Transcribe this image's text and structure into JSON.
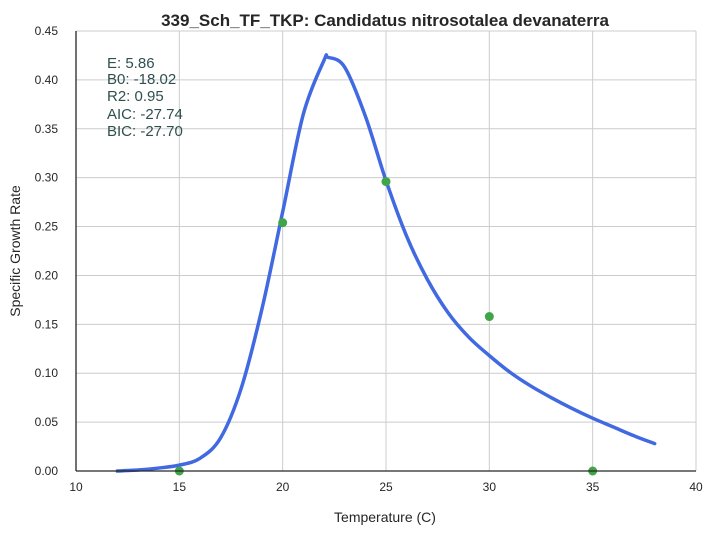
{
  "chart_data": {
    "type": "scatter",
    "title": "339_Sch_TF_TKP: Candidatus nitrosotalea devanaterra",
    "xlabel": "Temperature (C)",
    "ylabel": "Specific Growth Rate",
    "xlim": [
      10,
      40
    ],
    "ylim": [
      0,
      0.45
    ],
    "xticks": [
      10,
      15,
      20,
      25,
      30,
      35,
      40
    ],
    "yticks": [
      0.0,
      0.05,
      0.1,
      0.15,
      0.2,
      0.25,
      0.3,
      0.35,
      0.4,
      0.45
    ],
    "xtick_labels": [
      "10",
      "15",
      "20",
      "25",
      "30",
      "35",
      "40"
    ],
    "ytick_labels": [
      "0.00",
      "0.05",
      "0.10",
      "0.15",
      "0.20",
      "0.25",
      "0.30",
      "0.35",
      "0.40",
      "0.45"
    ],
    "grid": true,
    "colors": {
      "curve": "#4169e1",
      "points": "#3fa548",
      "grid": "#cccccc",
      "axis": "#262626",
      "annotation": "#2f4f4f"
    },
    "points": {
      "x": [
        15,
        20,
        25,
        30,
        35
      ],
      "y": [
        0.0,
        0.254,
        0.296,
        0.158,
        0.0
      ]
    },
    "fit_curve": {
      "x": [
        12,
        13,
        14,
        15,
        16,
        17,
        18,
        19,
        20,
        21,
        22,
        22.2,
        23,
        24,
        25,
        26,
        27,
        28,
        29,
        30,
        31,
        32,
        33,
        34,
        35,
        36,
        37,
        38
      ],
      "y": [
        0.0,
        0.001,
        0.003,
        0.006,
        0.013,
        0.034,
        0.085,
        0.166,
        0.265,
        0.365,
        0.42,
        0.423,
        0.413,
        0.363,
        0.297,
        0.24,
        0.196,
        0.162,
        0.137,
        0.118,
        0.101,
        0.087,
        0.075,
        0.064,
        0.054,
        0.045,
        0.036,
        0.028
      ]
    },
    "annotation_lines": [
      "E:  5.86",
      "B0:  -18.02",
      "R2:  0.95",
      "AIC: -27.74",
      "BIC: -27.70"
    ]
  }
}
